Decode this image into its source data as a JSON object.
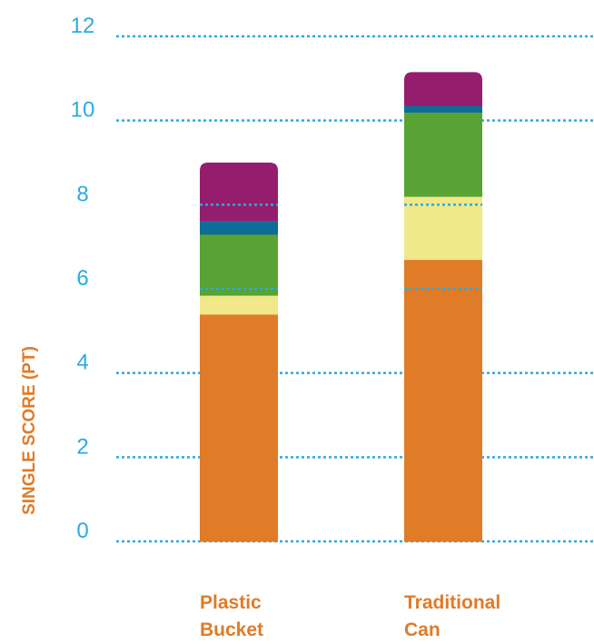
{
  "chart_data": {
    "type": "bar",
    "stacked": true,
    "ylabel": "SINGLE SCORE (PT)",
    "ylim": [
      0,
      12
    ],
    "yticks": [
      "0",
      "2",
      "4",
      "6",
      "8",
      "10",
      "12"
    ],
    "categories": [
      [
        "Plastic",
        "Bucket"
      ],
      [
        "Traditional",
        "Can"
      ]
    ],
    "series": [
      {
        "color": "#E07B28",
        "values": [
          5.4,
          6.7
        ]
      },
      {
        "color": "#F0E88A",
        "values": [
          0.45,
          1.5
        ]
      },
      {
        "color": "#58A333",
        "values": [
          1.45,
          2.0
        ]
      },
      {
        "color": "#0E6C96",
        "values": [
          0.3,
          0.15
        ]
      },
      {
        "color": "#951D6E",
        "values": [
          1.4,
          0.8
        ]
      }
    ],
    "grid": true,
    "gridlines_at": [
      0,
      2,
      4,
      10,
      12
    ],
    "colors": {
      "grid": "#29ABE2",
      "tick_text": "#29ABE2",
      "label_text": "#E07B28"
    }
  }
}
